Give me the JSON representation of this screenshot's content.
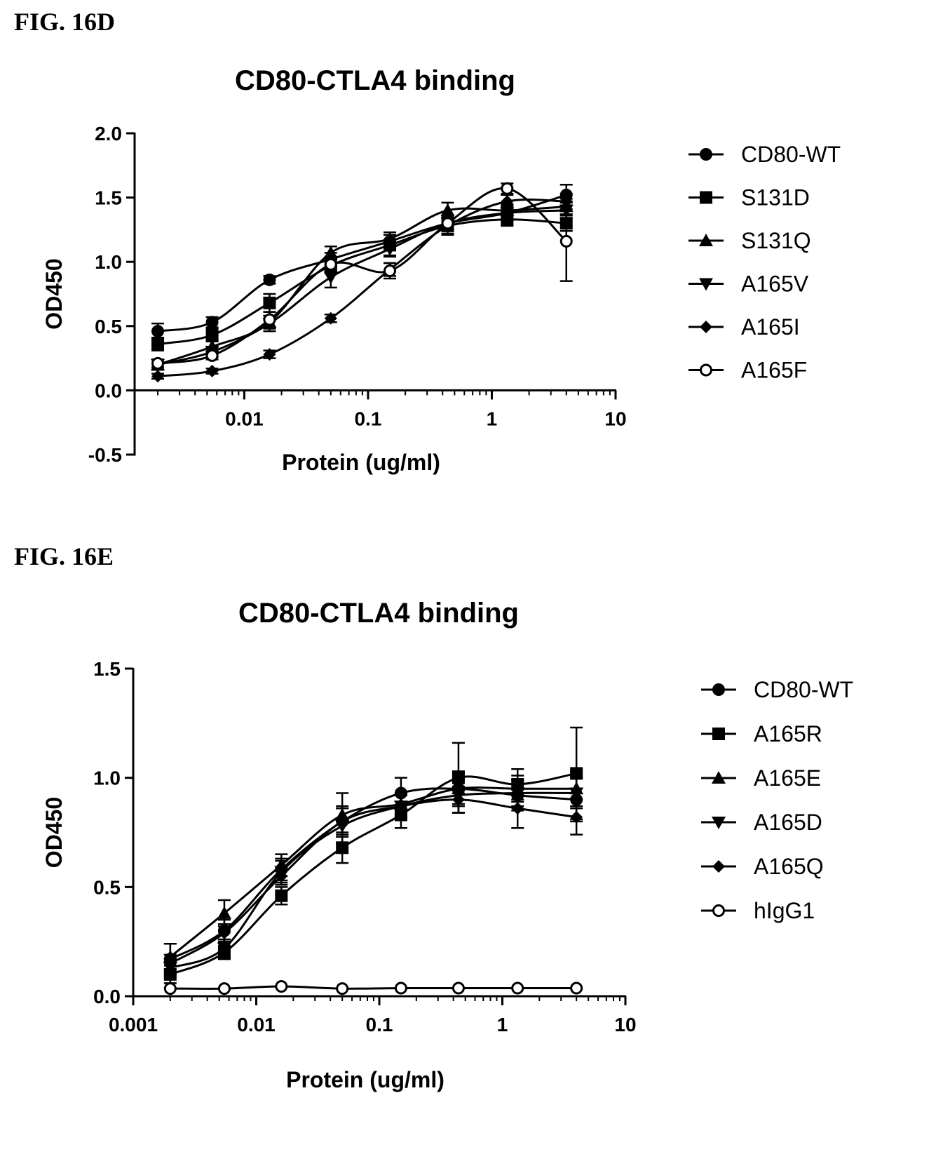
{
  "figures": [
    {
      "label": "FIG. 16D"
    },
    {
      "label": "FIG. 16E"
    }
  ],
  "chart_data": [
    {
      "type": "scatter",
      "title": "CD80-CTLA4 binding",
      "xlabel": "Protein (ug/ml)",
      "ylabel": "OD450",
      "xscale": "log",
      "xlim": [
        0.0013,
        10
      ],
      "ylim": [
        -0.5,
        2.0
      ],
      "xticks": [
        "0.01",
        "0.1",
        "1",
        "10"
      ],
      "yticks": [
        "-0.5",
        "0.0",
        "0.5",
        "1.0",
        "1.5",
        "2.0"
      ],
      "legend_position": "right",
      "x": [
        0.002,
        0.0055,
        0.016,
        0.05,
        0.15,
        0.44,
        1.33,
        4.0
      ],
      "series": [
        {
          "name": "CD80-WT",
          "marker": "circle",
          "values": [
            0.46,
            0.53,
            0.86,
            1.02,
            1.16,
            1.3,
            1.38,
            1.52
          ],
          "errors": [
            0.06,
            0.04,
            0.03,
            0.05,
            0.05,
            0.05,
            0.06,
            0.08
          ]
        },
        {
          "name": "S131D",
          "marker": "square",
          "values": [
            0.36,
            0.43,
            0.68,
            0.97,
            1.13,
            1.28,
            1.33,
            1.3
          ],
          "errors": [
            0.05,
            0.05,
            0.07,
            0.06,
            0.08,
            0.07,
            0.05,
            0.06
          ]
        },
        {
          "name": "S131Q",
          "marker": "triangle-up",
          "values": [
            0.2,
            0.34,
            0.53,
            1.07,
            1.18,
            1.4,
            1.4,
            1.43
          ],
          "errors": [
            0.04,
            0.05,
            0.05,
            0.05,
            0.05,
            0.06,
            0.05,
            0.06
          ]
        },
        {
          "name": "A165V",
          "marker": "triangle-down",
          "values": [
            0.2,
            0.3,
            0.52,
            0.88,
            1.1,
            1.3,
            1.38,
            1.4
          ],
          "errors": [
            0.04,
            0.04,
            0.06,
            0.08,
            0.06,
            0.05,
            0.05,
            0.06
          ]
        },
        {
          "name": "A165I",
          "marker": "diamond",
          "values": [
            0.11,
            0.15,
            0.28,
            0.56,
            0.94,
            1.28,
            1.47,
            1.47
          ],
          "errors": [
            0.02,
            0.02,
            0.03,
            0.03,
            0.05,
            0.06,
            0.05,
            0.06
          ]
        },
        {
          "name": "A165F",
          "marker": "circle-open",
          "values": [
            0.21,
            0.27,
            0.55,
            0.98,
            0.93,
            1.3,
            1.57,
            1.16
          ],
          "errors": [
            0.03,
            0.03,
            0.06,
            0.06,
            0.06,
            0.05,
            0.04,
            0.31
          ]
        }
      ]
    },
    {
      "type": "scatter",
      "title": "CD80-CTLA4 binding",
      "xlabel": "Protein (ug/ml)",
      "ylabel": "OD450",
      "xscale": "log",
      "xlim": [
        0.001,
        10
      ],
      "ylim": [
        0.0,
        1.5
      ],
      "xticks": [
        "0.001",
        "0.01",
        "0.1",
        "1",
        "10"
      ],
      "yticks": [
        "0.0",
        "0.5",
        "1.0",
        "1.5"
      ],
      "legend_position": "right",
      "x": [
        0.002,
        0.0055,
        0.016,
        0.05,
        0.15,
        0.44,
        1.33,
        4.0
      ],
      "series": [
        {
          "name": "CD80-WT",
          "marker": "circle",
          "values": [
            0.17,
            0.3,
            0.58,
            0.8,
            0.93,
            0.95,
            0.92,
            0.9
          ],
          "errors": [
            0.07,
            0.05,
            0.05,
            0.07,
            0.07,
            0.08,
            0.07,
            0.1
          ]
        },
        {
          "name": "A165R",
          "marker": "square",
          "values": [
            0.1,
            0.2,
            0.46,
            0.68,
            0.83,
            1.0,
            0.97,
            1.02
          ],
          "errors": [
            0.04,
            0.03,
            0.04,
            0.07,
            0.06,
            0.16,
            0.07,
            0.21
          ]
        },
        {
          "name": "A165E",
          "marker": "triangle-up",
          "values": [
            0.18,
            0.38,
            0.6,
            0.83,
            0.88,
            0.95,
            0.95,
            0.95
          ],
          "errors": [
            0.06,
            0.06,
            0.05,
            0.1,
            0.05,
            0.07,
            0.06,
            0.08
          ]
        },
        {
          "name": "A165D",
          "marker": "triangle-down",
          "values": [
            0.13,
            0.22,
            0.57,
            0.78,
            0.87,
            0.92,
            0.93,
            0.93
          ],
          "errors": [
            0.04,
            0.04,
            0.05,
            0.08,
            0.05,
            0.08,
            0.06,
            0.07
          ]
        },
        {
          "name": "A165Q",
          "marker": "diamond",
          "values": [
            0.15,
            0.29,
            0.55,
            0.8,
            0.87,
            0.9,
            0.86,
            0.82
          ],
          "errors": [
            0.04,
            0.04,
            0.04,
            0.06,
            0.05,
            0.06,
            0.09,
            0.08
          ]
        },
        {
          "name": "hIgG1",
          "marker": "circle-open",
          "values": [
            0.035,
            0.035,
            0.045,
            0.035,
            0.037,
            0.037,
            0.037,
            0.037
          ],
          "errors": [
            0,
            0,
            0,
            0,
            0,
            0,
            0,
            0
          ]
        }
      ]
    }
  ]
}
